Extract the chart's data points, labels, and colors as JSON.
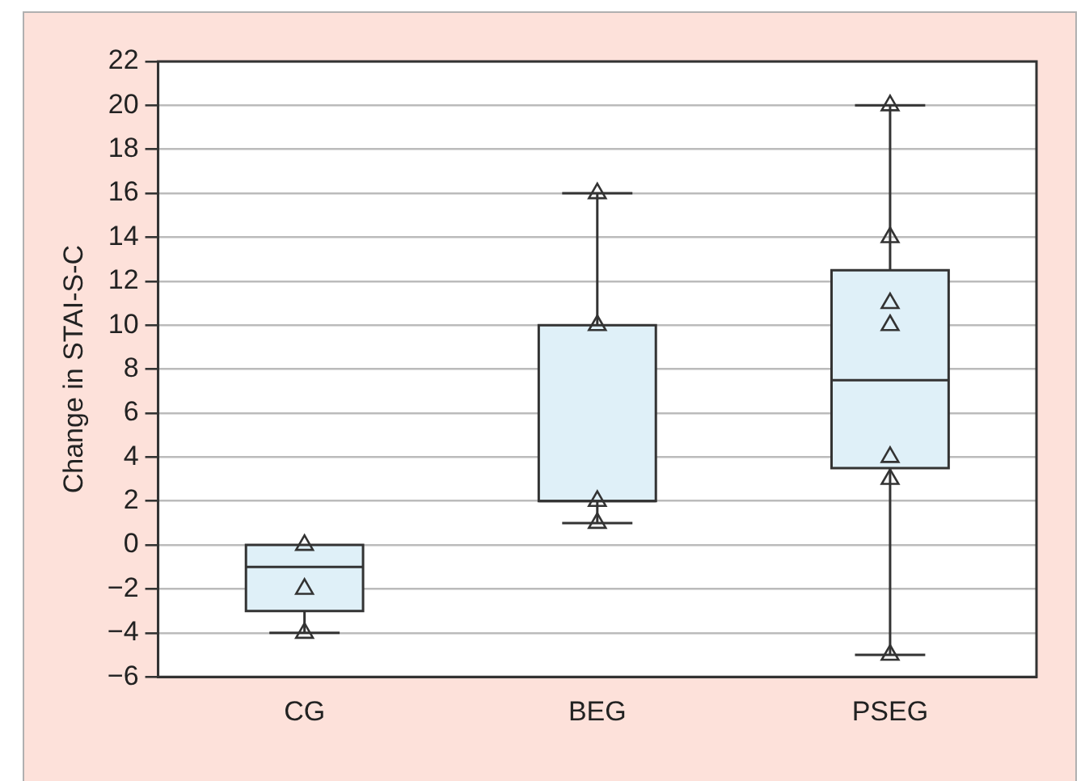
{
  "chart_data": {
    "type": "box",
    "ylabel": "Change in STAI-S-C",
    "categories": [
      "CG",
      "BEG",
      "PSEG"
    ],
    "color": "#dff0f8",
    "boxes": [
      {
        "low": -4,
        "q1": -3,
        "median": -1,
        "q3": 0,
        "high": 0
      },
      {
        "low": 1,
        "q1": 2,
        "median": 2,
        "q3": 10,
        "high": 16
      },
      {
        "low": -5,
        "q1": 3.5,
        "median": 7.5,
        "q3": 12.5,
        "high": 20
      }
    ],
    "series": [
      {
        "type": "scatter",
        "color": "#333333",
        "marker": "triangle",
        "x": [
          "CG",
          "CG",
          "CG",
          "BEG",
          "BEG",
          "BEG",
          "BEG",
          "PSEG",
          "PSEG",
          "PSEG",
          "PSEG",
          "PSEG",
          "PSEG",
          "PSEG"
        ],
        "values": [
          0,
          -2,
          -4,
          16,
          10,
          2,
          1,
          20,
          14,
          11,
          10,
          4,
          3,
          -5
        ]
      }
    ],
    "ylim": [
      -6,
      22
    ],
    "yticks": [
      -6,
      -4,
      -2,
      0,
      2,
      4,
      6,
      8,
      10,
      12,
      14,
      16,
      18,
      20,
      22
    ],
    "grid": "y",
    "legend": false
  }
}
